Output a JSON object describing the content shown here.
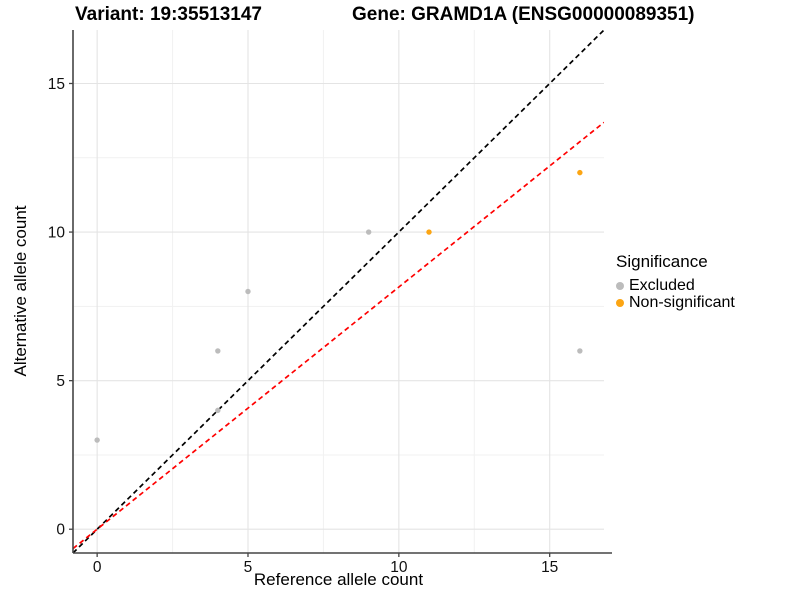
{
  "title": {
    "variant": "Variant: 19:35513147",
    "gene": "Gene: GRAMD1A (ENSG00000089351)"
  },
  "chart_data": {
    "type": "scatter",
    "xlabel": "Reference allele count",
    "ylabel": "Alternative allele count",
    "xlim": [
      -0.8,
      16.8
    ],
    "ylim": [
      -0.8,
      16.8
    ],
    "xticks": [
      0,
      5,
      10,
      15
    ],
    "yticks": [
      0,
      5,
      10,
      15
    ],
    "minor_gridlines_x": [
      2.5,
      7.5,
      12.5
    ],
    "minor_gridlines_y": [
      2.5,
      7.5,
      12.5
    ],
    "grid": true,
    "series": [
      {
        "name": "Excluded",
        "color": "#bcbcbc",
        "points": [
          [
            0,
            3
          ],
          [
            4,
            4
          ],
          [
            4,
            6
          ],
          [
            5,
            8
          ],
          [
            9,
            10
          ],
          [
            16,
            6
          ]
        ]
      },
      {
        "name": "Non-significant",
        "color": "#fca513",
        "points": [
          [
            11,
            10
          ],
          [
            16,
            12
          ]
        ]
      }
    ],
    "lines": [
      {
        "name": "identity-line",
        "color": "#000000",
        "slope": 1,
        "intercept": 0,
        "style": "dashed"
      },
      {
        "name": "expected-ratio-line",
        "color": "#ff0000",
        "slope": 0.815,
        "intercept": 0,
        "style": "dashed"
      }
    ],
    "legend": {
      "title": "Significance",
      "position": "right",
      "items": [
        {
          "label": "Excluded",
          "color": "#bcbcbc"
        },
        {
          "label": "Non-significant",
          "color": "#fca513"
        }
      ]
    },
    "colors": {
      "major_grid": "#e4e4e4",
      "minor_grid": "#f1f1f1",
      "axis_line": "#454545",
      "tick_text": "#111111"
    }
  }
}
